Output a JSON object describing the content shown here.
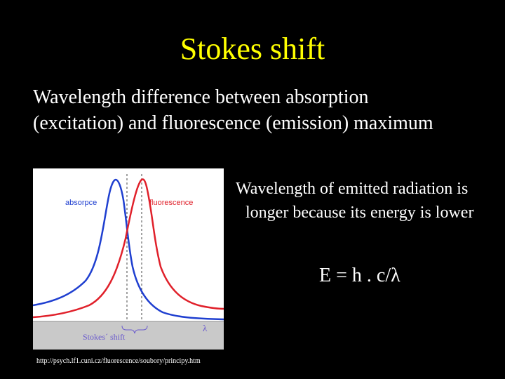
{
  "slide": {
    "title": "Stokes shift",
    "definition": "Wavelength difference between absorption (excitation) and fluorescence (emission) maximum",
    "explanation": "Wavelength of emitted radiation is longer because its energy is lower",
    "formula": "E = h . c/λ",
    "source_url": "http://psych.lf1.cuni.cz/fluorescence/soubory/principy.htm"
  },
  "figure": {
    "absorption_label": "absorpce",
    "fluorescence_label": "fluorescence",
    "shift_label": "Stokes´ shift",
    "axis_label": "λ",
    "colors": {
      "absorption": "#1f3fd0",
      "fluorescence": "#e0202a",
      "plot_background": "#ffffff",
      "axis_band": "#c9c9c9",
      "label_absorption": "#1f3fd0",
      "label_fluorescence": "#e0202a",
      "label_band": "#6a5acd"
    }
  }
}
